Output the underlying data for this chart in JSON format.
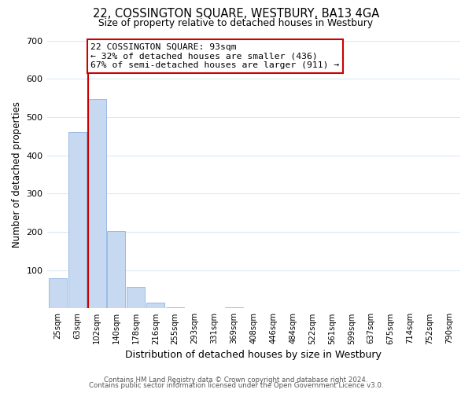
{
  "title": "22, COSSINGTON SQUARE, WESTBURY, BA13 4GA",
  "subtitle": "Size of property relative to detached houses in Westbury",
  "xlabel": "Distribution of detached houses by size in Westbury",
  "ylabel": "Number of detached properties",
  "bar_labels": [
    "25sqm",
    "63sqm",
    "102sqm",
    "140sqm",
    "178sqm",
    "216sqm",
    "255sqm",
    "293sqm",
    "331sqm",
    "369sqm",
    "408sqm",
    "446sqm",
    "484sqm",
    "522sqm",
    "561sqm",
    "599sqm",
    "637sqm",
    "675sqm",
    "714sqm",
    "752sqm",
    "790sqm"
  ],
  "bar_heights": [
    78,
    460,
    547,
    201,
    56,
    15,
    3,
    0,
    0,
    3,
    0,
    0,
    0,
    0,
    0,
    0,
    0,
    0,
    0,
    0,
    0
  ],
  "bar_color": "#c6d9f1",
  "bar_edge_color": "#8eb4e3",
  "annotation_title": "22 COSSINGTON SQUARE: 93sqm",
  "annotation_line1": "← 32% of detached houses are smaller (436)",
  "annotation_line2": "67% of semi-detached houses are larger (911) →",
  "annotation_box_color": "#ffffff",
  "annotation_box_edge": "#cc0000",
  "vline_color": "#cc0000",
  "ylim": [
    0,
    700
  ],
  "yticks": [
    0,
    100,
    200,
    300,
    400,
    500,
    600,
    700
  ],
  "footer_line1": "Contains HM Land Registry data © Crown copyright and database right 2024.",
  "footer_line2": "Contains public sector information licensed under the Open Government Licence v3.0.",
  "bg_color": "#ffffff",
  "grid_color": "#dce9f7"
}
